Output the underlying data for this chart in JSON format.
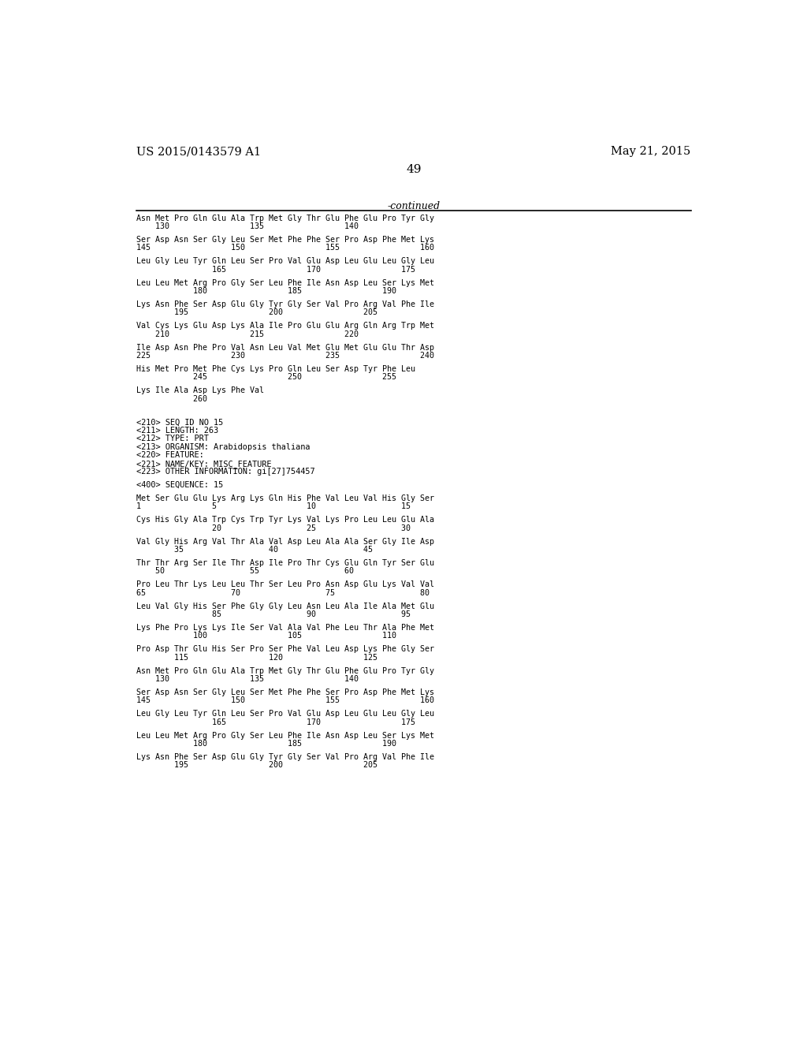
{
  "page_number": "49",
  "patent_number": "US 2015/0143579 A1",
  "patent_date": "May 21, 2015",
  "continued_label": "-continued",
  "background_color": "#ffffff",
  "text_color": "#000000",
  "content": [
    {
      "type": "seq",
      "text": "Asn Met Pro Gln Glu Ala Trp Met Gly Thr Glu Phe Glu Pro Tyr Gly"
    },
    {
      "type": "num",
      "text": "    130                 135                 140"
    },
    {
      "type": "blank"
    },
    {
      "type": "seq",
      "text": "Ser Asp Asn Ser Gly Leu Ser Met Phe Phe Ser Pro Asp Phe Met Lys"
    },
    {
      "type": "num",
      "text": "145                 150                 155                 160"
    },
    {
      "type": "blank"
    },
    {
      "type": "seq",
      "text": "Leu Gly Leu Tyr Gln Leu Ser Pro Val Glu Asp Leu Glu Leu Gly Leu"
    },
    {
      "type": "num",
      "text": "                165                 170                 175"
    },
    {
      "type": "blank"
    },
    {
      "type": "seq",
      "text": "Leu Leu Met Arg Pro Gly Ser Leu Phe Ile Asn Asp Leu Ser Lys Met"
    },
    {
      "type": "num",
      "text": "            180                 185                 190"
    },
    {
      "type": "blank"
    },
    {
      "type": "seq",
      "text": "Lys Asn Phe Ser Asp Glu Gly Tyr Gly Ser Val Pro Arg Val Phe Ile"
    },
    {
      "type": "num",
      "text": "        195                 200                 205"
    },
    {
      "type": "blank"
    },
    {
      "type": "seq",
      "text": "Val Cys Lys Glu Asp Lys Ala Ile Pro Glu Glu Arg Gln Arg Trp Met"
    },
    {
      "type": "num",
      "text": "    210                 215                 220"
    },
    {
      "type": "blank"
    },
    {
      "type": "seq",
      "text": "Ile Asp Asn Phe Pro Val Asn Leu Val Met Glu Met Glu Glu Thr Asp"
    },
    {
      "type": "num",
      "text": "225                 230                 235                 240"
    },
    {
      "type": "blank"
    },
    {
      "type": "seq",
      "text": "His Met Pro Met Phe Cys Lys Pro Gln Leu Ser Asp Tyr Phe Leu"
    },
    {
      "type": "num",
      "text": "            245                 250                 255"
    },
    {
      "type": "blank"
    },
    {
      "type": "seq",
      "text": "Lys Ile Ala Asp Lys Phe Val"
    },
    {
      "type": "num",
      "text": "            260"
    },
    {
      "type": "blank"
    },
    {
      "type": "blank"
    },
    {
      "type": "blank"
    },
    {
      "type": "meta",
      "text": "<210> SEQ ID NO 15"
    },
    {
      "type": "meta",
      "text": "<211> LENGTH: 263"
    },
    {
      "type": "meta",
      "text": "<212> TYPE: PRT"
    },
    {
      "type": "meta",
      "text": "<213> ORGANISM: Arabidopsis thaliana"
    },
    {
      "type": "meta",
      "text": "<220> FEATURE:"
    },
    {
      "type": "meta",
      "text": "<221> NAME/KEY: MISC_FEATURE"
    },
    {
      "type": "meta",
      "text": "<223> OTHER INFORMATION: gi[27]754457"
    },
    {
      "type": "blank"
    },
    {
      "type": "meta",
      "text": "<400> SEQUENCE: 15"
    },
    {
      "type": "blank"
    },
    {
      "type": "seq",
      "text": "Met Ser Glu Glu Lys Arg Lys Gln His Phe Val Leu Val His Gly Ser"
    },
    {
      "type": "num",
      "text": "1               5                   10                  15"
    },
    {
      "type": "blank"
    },
    {
      "type": "seq",
      "text": "Cys His Gly Ala Trp Cys Trp Tyr Lys Val Lys Pro Leu Leu Glu Ala"
    },
    {
      "type": "num",
      "text": "                20                  25                  30"
    },
    {
      "type": "blank"
    },
    {
      "type": "seq",
      "text": "Val Gly His Arg Val Thr Ala Val Asp Leu Ala Ala Ser Gly Ile Asp"
    },
    {
      "type": "num",
      "text": "        35                  40                  45"
    },
    {
      "type": "blank"
    },
    {
      "type": "seq",
      "text": "Thr Thr Arg Ser Ile Thr Asp Ile Pro Thr Cys Glu Gln Tyr Ser Glu"
    },
    {
      "type": "num",
      "text": "    50                  55                  60"
    },
    {
      "type": "blank"
    },
    {
      "type": "seq",
      "text": "Pro Leu Thr Lys Leu Leu Thr Ser Leu Pro Asn Asp Glu Lys Val Val"
    },
    {
      "type": "num",
      "text": "65                  70                  75                  80"
    },
    {
      "type": "blank"
    },
    {
      "type": "seq",
      "text": "Leu Val Gly His Ser Phe Gly Gly Leu Asn Leu Ala Ile Ala Met Glu"
    },
    {
      "type": "num",
      "text": "                85                  90                  95"
    },
    {
      "type": "blank"
    },
    {
      "type": "seq",
      "text": "Lys Phe Pro Lys Lys Ile Ser Val Ala Val Phe Leu Thr Ala Phe Met"
    },
    {
      "type": "num",
      "text": "            100                 105                 110"
    },
    {
      "type": "blank"
    },
    {
      "type": "seq",
      "text": "Pro Asp Thr Glu His Ser Pro Ser Phe Val Leu Asp Lys Phe Gly Ser"
    },
    {
      "type": "num",
      "text": "        115                 120                 125"
    },
    {
      "type": "blank"
    },
    {
      "type": "seq",
      "text": "Asn Met Pro Gln Glu Ala Trp Met Gly Thr Glu Phe Glu Pro Tyr Gly"
    },
    {
      "type": "num",
      "text": "    130                 135                 140"
    },
    {
      "type": "blank"
    },
    {
      "type": "seq",
      "text": "Ser Asp Asn Ser Gly Leu Ser Met Phe Phe Ser Pro Asp Phe Met Lys"
    },
    {
      "type": "num",
      "text": "145                 150                 155                 160"
    },
    {
      "type": "blank"
    },
    {
      "type": "seq",
      "text": "Leu Gly Leu Tyr Gln Leu Ser Pro Val Glu Asp Leu Glu Leu Gly Leu"
    },
    {
      "type": "num",
      "text": "                165                 170                 175"
    },
    {
      "type": "blank"
    },
    {
      "type": "seq",
      "text": "Leu Leu Met Arg Pro Gly Ser Leu Phe Ile Asn Asp Leu Ser Lys Met"
    },
    {
      "type": "num",
      "text": "            180                 185                 190"
    },
    {
      "type": "blank"
    },
    {
      "type": "seq",
      "text": "Lys Asn Phe Ser Asp Glu Gly Tyr Gly Ser Val Pro Arg Val Phe Ile"
    },
    {
      "type": "num",
      "text": "        195                 200                 205"
    }
  ]
}
